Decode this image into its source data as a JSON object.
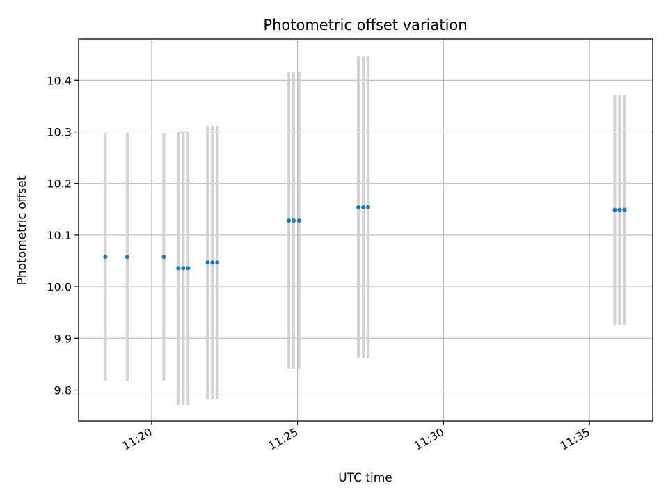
{
  "chart_data": {
    "type": "scatter",
    "title": "Photometric offset variation",
    "xlabel": "UTC time",
    "ylabel": "Photometric offset",
    "x_is_time": true,
    "xlim": [
      "11:17:30",
      "11:37:10"
    ],
    "ylim": [
      9.74,
      10.48
    ],
    "x_ticks": [
      "11:20",
      "11:25",
      "11:30",
      "11:35"
    ],
    "y_ticks": [
      9.8,
      9.9,
      10.0,
      10.1,
      10.2,
      10.3,
      10.4
    ],
    "grid": true,
    "errorbar_color": "#d3d3d3",
    "marker_color": "#1f77b4",
    "points": [
      {
        "x": "11:18:25",
        "y": 10.058,
        "err": 0.24
      },
      {
        "x": "11:19:10",
        "y": 10.058,
        "err": 0.24
      },
      {
        "x": "11:20:25",
        "y": 10.058,
        "err": 0.24
      },
      {
        "x": "11:20:55",
        "y": 10.036,
        "err": 0.265
      },
      {
        "x": "11:21:05",
        "y": 10.036,
        "err": 0.265
      },
      {
        "x": "11:21:15",
        "y": 10.036,
        "err": 0.265
      },
      {
        "x": "11:21:55",
        "y": 10.047,
        "err": 0.265
      },
      {
        "x": "11:22:05",
        "y": 10.047,
        "err": 0.265
      },
      {
        "x": "11:22:15",
        "y": 10.047,
        "err": 0.265
      },
      {
        "x": "11:24:42",
        "y": 10.128,
        "err": 0.287
      },
      {
        "x": "11:24:52",
        "y": 10.128,
        "err": 0.287
      },
      {
        "x": "11:25:03",
        "y": 10.128,
        "err": 0.287
      },
      {
        "x": "11:27:05",
        "y": 10.154,
        "err": 0.292
      },
      {
        "x": "11:27:15",
        "y": 10.154,
        "err": 0.292
      },
      {
        "x": "11:27:25",
        "y": 10.154,
        "err": 0.292
      },
      {
        "x": "11:35:52",
        "y": 10.149,
        "err": 0.223
      },
      {
        "x": "11:36:02",
        "y": 10.149,
        "err": 0.223
      },
      {
        "x": "11:36:12",
        "y": 10.149,
        "err": 0.223
      }
    ]
  }
}
